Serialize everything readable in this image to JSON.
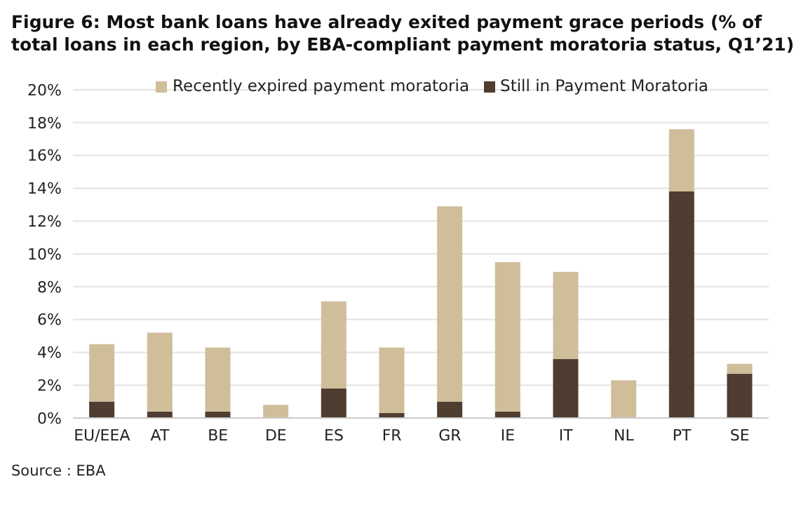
{
  "chart_data": {
    "type": "bar",
    "title": "Figure 6: Most bank loans have already exited payment grace periods (% of total loans in each region, by EBA-compliant payment moratoria status, Q1’21)",
    "categories": [
      "EU/EEA",
      "AT",
      "BE",
      "DE",
      "ES",
      "FR",
      "GR",
      "IE",
      "IT",
      "NL",
      "PT",
      "SE"
    ],
    "stacked": true,
    "series": [
      {
        "name": "Still in Payment Moratoria",
        "color": "#4e3d30",
        "values": [
          1.0,
          0.4,
          0.4,
          null,
          1.8,
          0.3,
          1.0,
          0.4,
          3.6,
          null,
          13.8,
          2.7
        ]
      },
      {
        "name": "Recently expired payment moratoria",
        "color": "#d0bd9a",
        "values": [
          3.5,
          4.8,
          3.9,
          0.8,
          5.3,
          4.0,
          11.9,
          9.1,
          5.3,
          2.3,
          3.8,
          0.6
        ]
      }
    ],
    "ylim": [
      0,
      20
    ],
    "yticks": [
      {
        "value": 0,
        "label": "0%"
      },
      {
        "value": 2,
        "label": "2%"
      },
      {
        "value": 4,
        "label": "4%"
      },
      {
        "value": 6,
        "label": "6%"
      },
      {
        "value": 8,
        "label": "8%"
      },
      {
        "value": 10,
        "label": "10%"
      },
      {
        "value": 12,
        "label": "12%"
      },
      {
        "value": 14,
        "label": "14%"
      },
      {
        "value": 16,
        "label": "16%"
      },
      {
        "value": 18,
        "label": "18%"
      },
      {
        "value": 20,
        "label": "20%"
      }
    ],
    "grid": "y",
    "legend": "top",
    "annotations": [
      "Source : EBA"
    ]
  }
}
